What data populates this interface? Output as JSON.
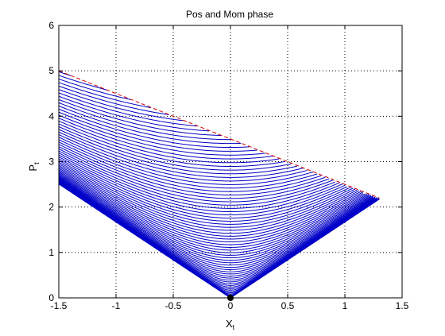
{
  "chart_data": {
    "type": "line",
    "title": "Pos and Mom phase",
    "xlabel_main": "X",
    "xlabel_sub": "t",
    "ylabel_main": "P",
    "ylabel_sub": "t",
    "xlim": [
      -1.5,
      1.5
    ],
    "ylim": [
      0,
      6
    ],
    "xticks": [
      -1.5,
      -1,
      -0.5,
      0,
      0.5,
      1,
      1.5
    ],
    "xtick_labels": [
      "-1.5",
      "-1",
      "-0.5",
      "0",
      "0.5",
      "1",
      "1.5"
    ],
    "yticks": [
      0,
      1,
      2,
      3,
      4,
      5,
      6
    ],
    "ytick_labels": [
      "0",
      "1",
      "2",
      "3",
      "4",
      "5",
      "6"
    ],
    "grid": true,
    "grid_style": "dotted",
    "family": {
      "description": "level curves P = sqrt(c^2 + k*X^2)",
      "k": 2.8,
      "c_min": 0.0,
      "c_max": 4.3,
      "count": 70,
      "color": "#0000c8"
    },
    "envelope": {
      "x": [
        -1.5,
        1.3
      ],
      "y": [
        5.0,
        2.2
      ],
      "style": "dashed",
      "color": "#d40000"
    },
    "origin_marker": {
      "x": 0,
      "y": 0,
      "color": "#000000"
    }
  }
}
